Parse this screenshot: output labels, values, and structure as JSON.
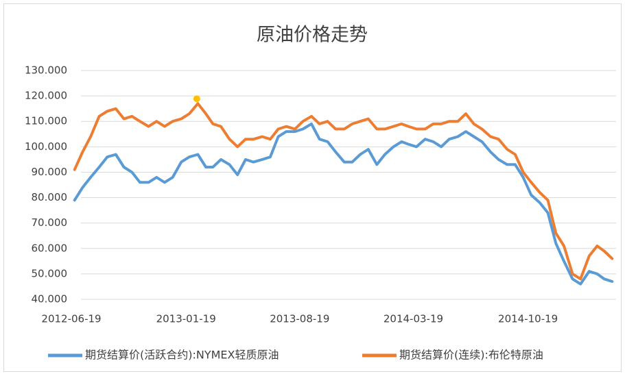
{
  "chart_data": {
    "type": "line",
    "title": "原油价格走势",
    "x": [
      "2012-06-25",
      "2012-07-10",
      "2012-07-25",
      "2012-08-10",
      "2012-08-25",
      "2012-09-10",
      "2012-09-25",
      "2012-10-10",
      "2012-10-25",
      "2012-11-10",
      "2012-11-25",
      "2012-12-10",
      "2012-12-25",
      "2013-01-10",
      "2013-01-25",
      "2013-02-10",
      "2013-02-25",
      "2013-03-10",
      "2013-03-25",
      "2013-04-10",
      "2013-04-25",
      "2013-05-10",
      "2013-05-25",
      "2013-06-10",
      "2013-06-25",
      "2013-07-10",
      "2013-07-25",
      "2013-08-10",
      "2013-08-25",
      "2013-09-10",
      "2013-09-25",
      "2013-10-10",
      "2013-10-25",
      "2013-11-10",
      "2013-11-25",
      "2013-12-10",
      "2013-12-25",
      "2014-01-10",
      "2014-01-25",
      "2014-02-10",
      "2014-02-25",
      "2014-03-10",
      "2014-03-25",
      "2014-04-10",
      "2014-04-25",
      "2014-05-10",
      "2014-05-25",
      "2014-06-10",
      "2014-06-25",
      "2014-07-10",
      "2014-07-25",
      "2014-08-10",
      "2014-08-25",
      "2014-09-10",
      "2014-09-25",
      "2014-10-10",
      "2014-10-25",
      "2014-11-10",
      "2014-11-25",
      "2014-12-10",
      "2014-12-25",
      "2015-01-10",
      "2015-01-25",
      "2015-02-10",
      "2015-02-25",
      "2015-03-10",
      "2015-03-25"
    ],
    "series": [
      {
        "name": "期货结算价(活跃合约):NYMEX轻质原油",
        "color": "#5b9bd5",
        "values": [
          79,
          84,
          88,
          92,
          96,
          97,
          92,
          90,
          86,
          86,
          88,
          86,
          88,
          94,
          96,
          97,
          92,
          92,
          95,
          93,
          89,
          95,
          94,
          95,
          96,
          104,
          106,
          106,
          107,
          109,
          103,
          102,
          98,
          94,
          94,
          97,
          99,
          93,
          97,
          100,
          102,
          101,
          100,
          103,
          102,
          100,
          103,
          104,
          106,
          104,
          102,
          98,
          95,
          93,
          93,
          88,
          81,
          78,
          74,
          62,
          55,
          48,
          46,
          51,
          50,
          48,
          47
        ]
      },
      {
        "name": "期货结算价(连续):布伦特原油",
        "color": "#ed7d31",
        "values": [
          91,
          98,
          104,
          112,
          114,
          115,
          111,
          112,
          110,
          108,
          110,
          108,
          110,
          111,
          113,
          117,
          113,
          109,
          108,
          103,
          100,
          103,
          103,
          104,
          103,
          107,
          108,
          107,
          110,
          112,
          109,
          110,
          107,
          107,
          109,
          110,
          111,
          107,
          107,
          108,
          109,
          108,
          107,
          107,
          109,
          109,
          110,
          110,
          113,
          109,
          107,
          104,
          103,
          99,
          97,
          90,
          86,
          82,
          79,
          66,
          61,
          50,
          48,
          57,
          61,
          59,
          56
        ]
      }
    ],
    "highlight": {
      "x": "2013-02-08",
      "value": 118.9,
      "color": "#ffc000"
    },
    "xlim": [
      "2012-06-19",
      "2015-03-31"
    ],
    "xticks": [
      "2012-06-19",
      "2013-01-19",
      "2013-08-19",
      "2014-03-19",
      "2014-10-19"
    ],
    "ylim": [
      40,
      130
    ],
    "yticks": [
      {
        "value": 40,
        "label": "40.000"
      },
      {
        "value": 50,
        "label": "50.000"
      },
      {
        "value": 60,
        "label": "60.000"
      },
      {
        "value": 70,
        "label": "70.000"
      },
      {
        "value": 80,
        "label": "80.000"
      },
      {
        "value": 90,
        "label": "90.000"
      },
      {
        "value": 100,
        "label": "100.000"
      },
      {
        "value": 110,
        "label": "110.000"
      },
      {
        "value": 120,
        "label": "120.000"
      },
      {
        "value": 130,
        "label": "130.000"
      }
    ],
    "grid": true,
    "legend": "bottom"
  }
}
